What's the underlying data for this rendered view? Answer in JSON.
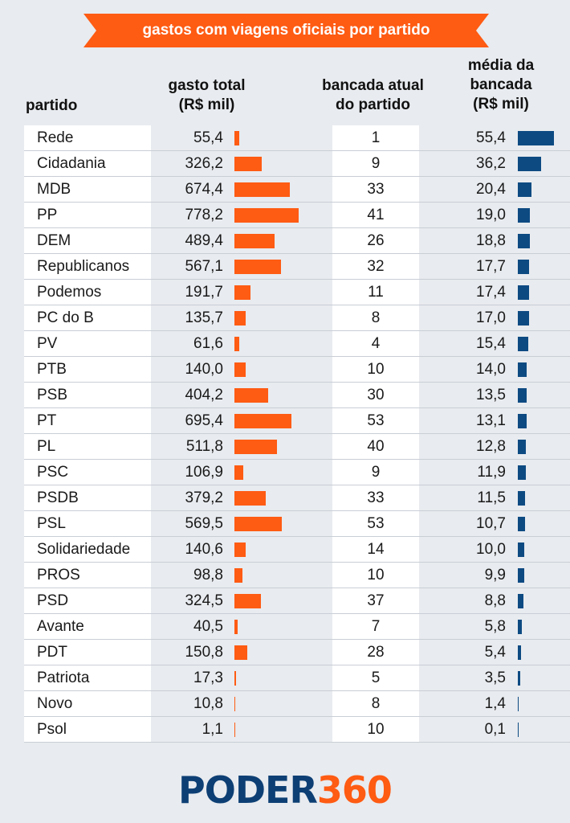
{
  "title": "gastos com viagens oficiais por partido",
  "headers": {
    "partido": "partido",
    "gasto_l1": "gasto total",
    "gasto_l2": "(R$ mil)",
    "bancada_l1": "bancada atual",
    "bancada_l2": "do partido",
    "media_l1": "média da",
    "media_l2": "bancada",
    "media_l3": "(R$ mil)"
  },
  "chart_data": {
    "type": "table",
    "columns": [
      "partido",
      "gasto total (R$ mil)",
      "bancada atual do partido",
      "média da bancada (R$ mil)"
    ],
    "rows": [
      {
        "partido": "Rede",
        "gasto": "55,4",
        "gasto_value": 55.4,
        "bancada": "1",
        "media": "55,4",
        "media_value": 55.4
      },
      {
        "partido": "Cidadania",
        "gasto": "326,2",
        "gasto_value": 326.2,
        "bancada": "9",
        "media": "36,2",
        "media_value": 36.2
      },
      {
        "partido": "MDB",
        "gasto": "674,4",
        "gasto_value": 674.4,
        "bancada": "33",
        "media": "20,4",
        "media_value": 20.4
      },
      {
        "partido": "PP",
        "gasto": "778,2",
        "gasto_value": 778.2,
        "bancada": "41",
        "media": "19,0",
        "media_value": 19.0
      },
      {
        "partido": "DEM",
        "gasto": "489,4",
        "gasto_value": 489.4,
        "bancada": "26",
        "media": "18,8",
        "media_value": 18.8
      },
      {
        "partido": "Republicanos",
        "gasto": "567,1",
        "gasto_value": 567.1,
        "bancada": "32",
        "media": "17,7",
        "media_value": 17.7
      },
      {
        "partido": "Podemos",
        "gasto": "191,7",
        "gasto_value": 191.7,
        "bancada": "11",
        "media": "17,4",
        "media_value": 17.4
      },
      {
        "partido": "PC do B",
        "gasto": "135,7",
        "gasto_value": 135.7,
        "bancada": "8",
        "media": "17,0",
        "media_value": 17.0
      },
      {
        "partido": "PV",
        "gasto": "61,6",
        "gasto_value": 61.6,
        "bancada": "4",
        "media": "15,4",
        "media_value": 15.4
      },
      {
        "partido": "PTB",
        "gasto": "140,0",
        "gasto_value": 140.0,
        "bancada": "10",
        "media": "14,0",
        "media_value": 14.0
      },
      {
        "partido": "PSB",
        "gasto": "404,2",
        "gasto_value": 404.2,
        "bancada": "30",
        "media": "13,5",
        "media_value": 13.5
      },
      {
        "partido": "PT",
        "gasto": "695,4",
        "gasto_value": 695.4,
        "bancada": "53",
        "media": "13,1",
        "media_value": 13.1
      },
      {
        "partido": "PL",
        "gasto": "511,8",
        "gasto_value": 511.8,
        "bancada": "40",
        "media": "12,8",
        "media_value": 12.8
      },
      {
        "partido": "PSC",
        "gasto": "106,9",
        "gasto_value": 106.9,
        "bancada": "9",
        "media": "11,9",
        "media_value": 11.9
      },
      {
        "partido": "PSDB",
        "gasto": "379,2",
        "gasto_value": 379.2,
        "bancada": "33",
        "media": "11,5",
        "media_value": 11.5
      },
      {
        "partido": "PSL",
        "gasto": "569,5",
        "gasto_value": 569.5,
        "bancada": "53",
        "media": "10,7",
        "media_value": 10.7
      },
      {
        "partido": "Solidariedade",
        "gasto": "140,6",
        "gasto_value": 140.6,
        "bancada": "14",
        "media": "10,0",
        "media_value": 10.0
      },
      {
        "partido": "PROS",
        "gasto": "98,8",
        "gasto_value": 98.8,
        "bancada": "10",
        "media": "9,9",
        "media_value": 9.9
      },
      {
        "partido": "PSD",
        "gasto": "324,5",
        "gasto_value": 324.5,
        "bancada": "37",
        "media": "8,8",
        "media_value": 8.8
      },
      {
        "partido": "Avante",
        "gasto": "40,5",
        "gasto_value": 40.5,
        "bancada": "7",
        "media": "5,8",
        "media_value": 5.8
      },
      {
        "partido": "PDT",
        "gasto": "150,8",
        "gasto_value": 150.8,
        "bancada": "28",
        "media": "5,4",
        "media_value": 5.4
      },
      {
        "partido": "Patriota",
        "gasto": "17,3",
        "gasto_value": 17.3,
        "bancada": "5",
        "media": "3,5",
        "media_value": 3.5
      },
      {
        "partido": "Novo",
        "gasto": "10,8",
        "gasto_value": 10.8,
        "bancada": "8",
        "media": "1,4",
        "media_value": 1.4
      },
      {
        "partido": "Psol",
        "gasto": "1,1",
        "gasto_value": 1.1,
        "bancada": "10",
        "media": "0,1",
        "media_value": 0.1
      }
    ],
    "gasto_max": 778.2,
    "media_max": 55.4
  },
  "colors": {
    "accent": "#fe5b13",
    "navy": "#0d4a82",
    "background": "#e8ebef"
  },
  "logo": {
    "part1": "PODER",
    "part2": "360"
  }
}
